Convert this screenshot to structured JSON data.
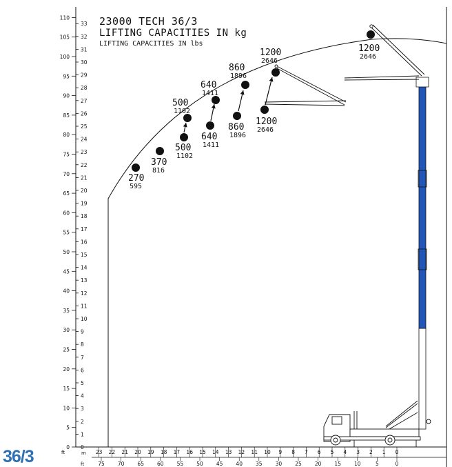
{
  "model_tag": "36/3",
  "title": {
    "line1": "23000 TECH 36/3",
    "line2": "LIFTING CAPACITIES IN kg",
    "line3": "LIFTING CAPACITIES IN lbs"
  },
  "colors": {
    "accent_blue": "#2f6fb3",
    "boom_blue": "#2255b8",
    "ink": "#111111"
  },
  "units": {
    "feet": "ft",
    "meters": "m"
  },
  "left_axis": {
    "feet": [
      0,
      5,
      10,
      15,
      20,
      25,
      30,
      35,
      40,
      45,
      50,
      55,
      60,
      65,
      70,
      75,
      80,
      85,
      90,
      95,
      100,
      105,
      110
    ],
    "meters": [
      0,
      1,
      2,
      3,
      4,
      5,
      6,
      7,
      8,
      9,
      10,
      11,
      12,
      13,
      14,
      15,
      16,
      17,
      18,
      19,
      20,
      21,
      22,
      23,
      24,
      25,
      26,
      27,
      28,
      29,
      30,
      31,
      32,
      33
    ]
  },
  "bottom_axis": {
    "meters": [
      "23",
      "22",
      "21",
      "20",
      "19",
      "18",
      "17",
      "16",
      "15",
      "14",
      "13",
      "12",
      "11",
      "10",
      "9",
      "8",
      "7",
      "6",
      "5",
      "4",
      "3",
      "2",
      "1",
      "0"
    ],
    "feet": [
      "75",
      "70",
      "65",
      "60",
      "55",
      "50",
      "45",
      "40",
      "35",
      "30",
      "25",
      "20",
      "15",
      "10",
      "5",
      "0"
    ]
  },
  "points": [
    {
      "kg": "270",
      "lbs": "595"
    },
    {
      "kg": "370",
      "lbs": "816"
    },
    {
      "kg": "500",
      "lbs": "1102"
    },
    {
      "kg": "500",
      "lbs": "1102"
    },
    {
      "kg": "640",
      "lbs": "1411"
    },
    {
      "kg": "640",
      "lbs": "1411"
    },
    {
      "kg": "860",
      "lbs": "1896"
    },
    {
      "kg": "860",
      "lbs": "1896"
    },
    {
      "kg": "1200",
      "lbs": "2646"
    },
    {
      "kg": "1200",
      "lbs": "2646"
    },
    {
      "kg": "1200",
      "lbs": "2646"
    }
  ]
}
